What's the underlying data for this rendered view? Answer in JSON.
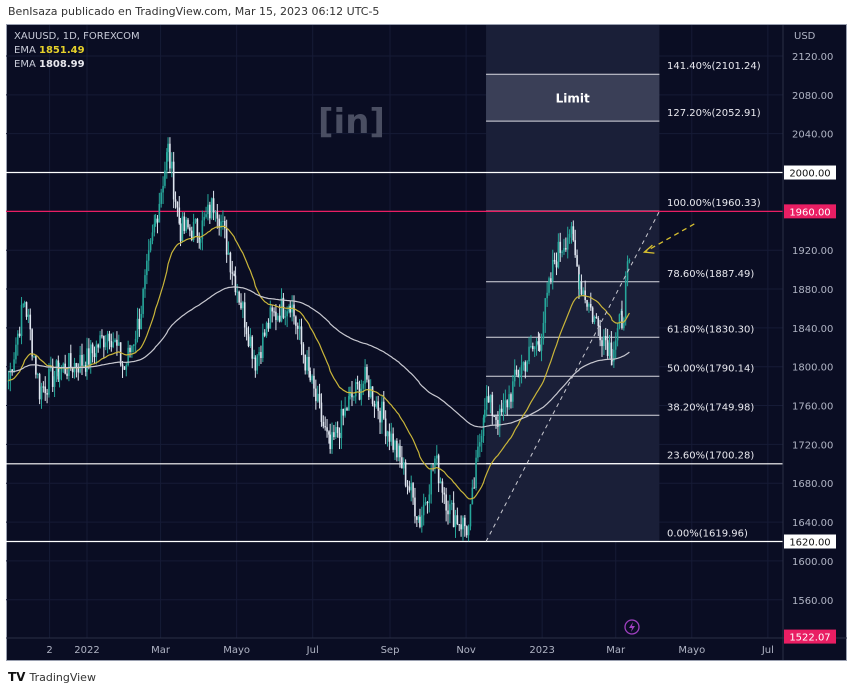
{
  "header": {
    "text": "BenIsaza publicado en TradingView.com, Mar 15, 2023 06:12 UTC-5"
  },
  "legend": {
    "symbol": "XAUUSD, 1D, FOREXCOM",
    "ema1_label": "EMA",
    "ema1_value": "1851.49",
    "ema2_label": "EMA",
    "ema2_value": "1808.99"
  },
  "footer": {
    "brand": "TradingView",
    "logo": "TV"
  },
  "watermark": "[in]",
  "colors": {
    "bg": "#0a0d23",
    "ema_fast": "#c9b53a",
    "ema_slow": "#c8c8d0",
    "resistance": "#e91e63",
    "candle": "#e0e6f0",
    "candle_up": "#26a69a"
  },
  "chart_data": {
    "type": "candlestick",
    "symbol": "XAUUSD",
    "interval": "1D",
    "currency": "USD",
    "ylim": [
      1522,
      2140
    ],
    "y_ticks": [
      "2120.00",
      "2080.00",
      "2040.00",
      "2000.00",
      "1960.00",
      "1920.00",
      "1880.00",
      "1840.00",
      "1800.00",
      "1760.00",
      "1720.00",
      "1680.00",
      "1640.00",
      "1620.00",
      "1600.00",
      "1560.00",
      "1522.07"
    ],
    "y_tick_values": [
      2120,
      2080,
      2040,
      2000,
      1960,
      1920,
      1880,
      1840,
      1800,
      1760,
      1720,
      1680,
      1640,
      1620,
      1600,
      1560,
      1522.07
    ],
    "x_ticks": [
      "2",
      "2022",
      "Mar",
      "Mayo",
      "Jul",
      "Sep",
      "Nov",
      "2023",
      "Mar",
      "Mayo",
      "Jul"
    ],
    "x_tick_days": [
      -30,
      0,
      59,
      120,
      181,
      243,
      304,
      365,
      424,
      485,
      546
    ],
    "close_path_day_price": [
      [
        -63,
        1786
      ],
      [
        -50,
        1869
      ],
      [
        -38,
        1776
      ],
      [
        -22,
        1797
      ],
      [
        0,
        1807
      ],
      [
        18,
        1838
      ],
      [
        30,
        1797
      ],
      [
        42,
        1849
      ],
      [
        55,
        1951
      ],
      [
        65,
        2023
      ],
      [
        75,
        1941
      ],
      [
        91,
        1941
      ],
      [
        103,
        1972
      ],
      [
        119,
        1889
      ],
      [
        135,
        1807
      ],
      [
        147,
        1849
      ],
      [
        163,
        1869
      ],
      [
        179,
        1786
      ],
      [
        195,
        1714
      ],
      [
        211,
        1766
      ],
      [
        223,
        1786
      ],
      [
        235,
        1756
      ],
      [
        251,
        1704
      ],
      [
        267,
        1642
      ],
      [
        279,
        1704
      ],
      [
        291,
        1652
      ],
      [
        306,
        1632
      ],
      [
        319,
        1766
      ],
      [
        331,
        1745
      ],
      [
        347,
        1797
      ],
      [
        363,
        1828
      ],
      [
        375,
        1910
      ],
      [
        387,
        1941
      ],
      [
        395,
        1889
      ],
      [
        407,
        1849
      ],
      [
        421,
        1817
      ],
      [
        429,
        1849
      ],
      [
        435,
        1910
      ]
    ],
    "ema_periods": [
      50,
      200
    ],
    "price_labels": [
      {
        "text": "2000.00",
        "value": 2000,
        "style": "white"
      },
      {
        "text": "1960.00",
        "value": 1960,
        "style": "red"
      },
      {
        "text": "1700.00",
        "value": 1700,
        "style": "white"
      },
      {
        "text": "1620.00",
        "value": 1620,
        "style": "white"
      },
      {
        "text": "1522.07",
        "value": 1522.07,
        "style": "red"
      }
    ],
    "horizontal_lines": [
      2000,
      1960,
      1700,
      1620
    ],
    "fibonacci": {
      "start_day": 320,
      "end_day": 459,
      "levels": [
        {
          "label": "141.40%(2101.24)",
          "value": 2101.24
        },
        {
          "label": "127.20%(2052.91)",
          "value": 2052.91
        },
        {
          "label": "100.00%(1960.33)",
          "value": 1960.33
        },
        {
          "label": "78.60%(1887.49)",
          "value": 1887.49
        },
        {
          "label": "61.80%(1830.30)",
          "value": 1830.3
        },
        {
          "label": "50.00%(1790.14)",
          "value": 1790.14
        },
        {
          "label": "38.20%(1749.98)",
          "value": 1749.98
        },
        {
          "label": "23.60%(1700.28)",
          "value": 1700.28
        },
        {
          "label": "0.00%(1619.96)",
          "value": 1619.96
        }
      ]
    },
    "limit_zone": {
      "label": "Limit",
      "from": 2052.91,
      "to": 2101.24
    },
    "trendline": {
      "from": [
        320,
        1620
      ],
      "to": [
        459,
        1960
      ]
    },
    "annotation_arrow": {
      "from": [
        487,
        1947
      ],
      "to": [
        447,
        1918
      ]
    }
  }
}
